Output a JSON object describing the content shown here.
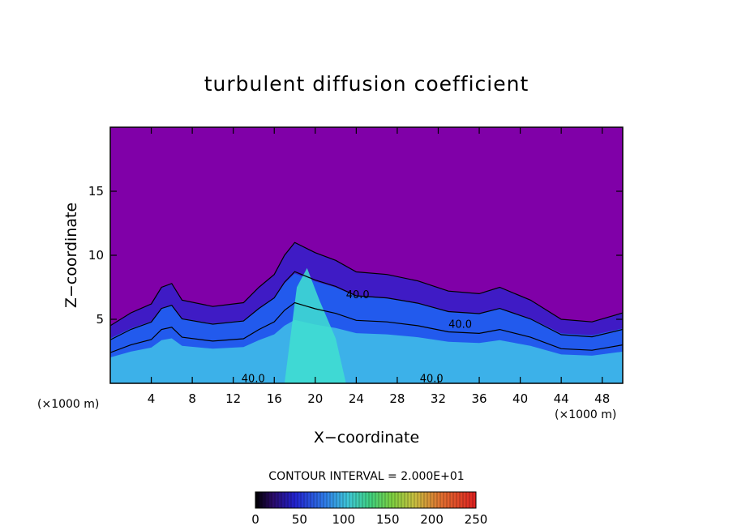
{
  "chart_data": {
    "type": "heatmap",
    "title": "turbulent diffusion coefficient",
    "xlabel": "X−coordinate",
    "ylabel": "Z−coordinate",
    "x_unit_left": "(×1000 m)",
    "x_unit_right": "(×1000 m)",
    "xlim": [
      0,
      50
    ],
    "ylim": [
      0,
      20
    ],
    "x_ticks": [
      4,
      8,
      12,
      16,
      20,
      24,
      28,
      32,
      36,
      40,
      44,
      48
    ],
    "y_ticks": [
      5,
      10,
      15
    ],
    "contour_interval_text": "CONTOUR INTERVAL = 2.000E+01",
    "contour_labels": [
      {
        "text": "40.0",
        "x": 23.0,
        "z": 6.9
      },
      {
        "text": "40.0",
        "x": 33.0,
        "z": 4.6
      },
      {
        "text": "40.0",
        "x": 12.8,
        "z": 0.35
      },
      {
        "text": "40.0",
        "x": 30.2,
        "z": 0.35
      }
    ],
    "colorbar": {
      "min": 0,
      "max": 250,
      "ticks": [
        0,
        50,
        100,
        150,
        200,
        250
      ]
    },
    "turbulent_top_profile": [
      {
        "x": 0,
        "z": 4.5
      },
      {
        "x": 2,
        "z": 5.5
      },
      {
        "x": 4,
        "z": 6.2
      },
      {
        "x": 5,
        "z": 7.5
      },
      {
        "x": 6,
        "z": 7.8
      },
      {
        "x": 7,
        "z": 6.5
      },
      {
        "x": 10,
        "z": 6.0
      },
      {
        "x": 13,
        "z": 6.3
      },
      {
        "x": 14.5,
        "z": 7.5
      },
      {
        "x": 16,
        "z": 8.5
      },
      {
        "x": 17,
        "z": 10.0
      },
      {
        "x": 18,
        "z": 11.0
      },
      {
        "x": 20,
        "z": 10.2
      },
      {
        "x": 22,
        "z": 9.6
      },
      {
        "x": 24,
        "z": 8.7
      },
      {
        "x": 27,
        "z": 8.5
      },
      {
        "x": 30,
        "z": 8.0
      },
      {
        "x": 33,
        "z": 7.2
      },
      {
        "x": 36,
        "z": 7.0
      },
      {
        "x": 38,
        "z": 7.5
      },
      {
        "x": 41,
        "z": 6.5
      },
      {
        "x": 44,
        "z": 5.0
      },
      {
        "x": 47,
        "z": 4.8
      },
      {
        "x": 50,
        "z": 5.5
      }
    ],
    "colors": {
      "background": "#8000a8",
      "low": "#3a1dc8",
      "mid": "#2060f0",
      "high": "#3fb8e8",
      "peak": "#40e0d0"
    }
  }
}
